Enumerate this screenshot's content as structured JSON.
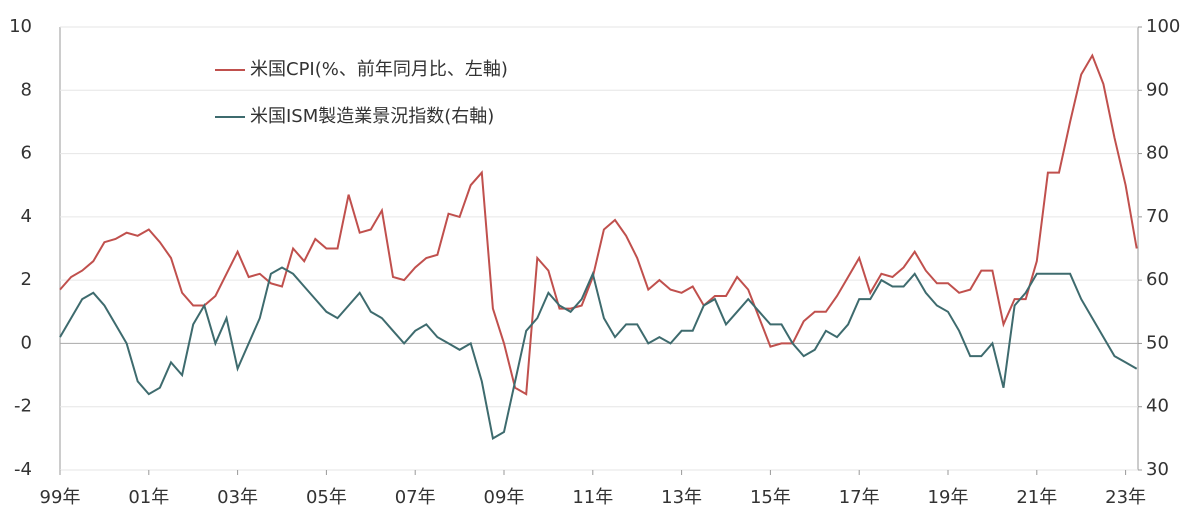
{
  "chart_data": {
    "type": "line",
    "categories": [
      "99年",
      null,
      null,
      null,
      null,
      null,
      null,
      null,
      "01年",
      null,
      null,
      null,
      null,
      null,
      null,
      null,
      "03年",
      null,
      null,
      null,
      null,
      null,
      null,
      null,
      "05年",
      null,
      null,
      null,
      null,
      null,
      null,
      null,
      "07年",
      null,
      null,
      null,
      null,
      null,
      null,
      null,
      "09年",
      null,
      null,
      null,
      null,
      null,
      null,
      null,
      "11年",
      null,
      null,
      null,
      null,
      null,
      null,
      null,
      "13年",
      null,
      null,
      null,
      null,
      null,
      null,
      null,
      "15年",
      null,
      null,
      null,
      null,
      null,
      null,
      null,
      "17年",
      null,
      null,
      null,
      null,
      null,
      null,
      null,
      "19年",
      null,
      null,
      null,
      null,
      null,
      null,
      null,
      "21年",
      null,
      null,
      null,
      null,
      null,
      null,
      null,
      "23年",
      null
    ],
    "series": [
      {
        "name": "米国CPI(%、前年同月比、左軸)",
        "color": "#c0504d",
        "values": [
          1.7,
          2.1,
          2.3,
          2.6,
          3.2,
          3.3,
          3.5,
          3.4,
          3.6,
          3.2,
          2.7,
          1.6,
          1.2,
          1.2,
          1.5,
          2.2,
          2.9,
          2.1,
          2.2,
          1.9,
          1.8,
          3.0,
          2.6,
          3.3,
          3.0,
          3.0,
          4.7,
          3.5,
          3.6,
          4.2,
          2.1,
          2.0,
          2.4,
          2.7,
          2.8,
          4.1,
          4.0,
          5.0,
          5.4,
          1.1,
          0.0,
          -1.4,
          -1.6,
          2.7,
          2.3,
          1.1,
          1.1,
          1.2,
          2.1,
          3.6,
          3.9,
          3.4,
          2.7,
          1.7,
          2.0,
          1.7,
          1.6,
          1.8,
          1.2,
          1.5,
          1.5,
          2.1,
          1.7,
          0.8,
          -0.1,
          0.0,
          0.0,
          0.7,
          1.0,
          1.0,
          1.5,
          2.1,
          2.7,
          1.6,
          2.2,
          2.1,
          2.4,
          2.9,
          2.3,
          1.9,
          1.9,
          1.6,
          1.7,
          2.3,
          2.3,
          0.6,
          1.4,
          1.4,
          2.6,
          5.4,
          5.4,
          7.0,
          8.5,
          9.1,
          8.2,
          6.5,
          5.0,
          3.0
        ]
      },
      {
        "name": "米国ISM製造業景況指数(右軸)",
        "color": "#3e6b6e",
        "axis": "y2",
        "values": [
          51,
          54,
          57,
          58,
          56,
          53,
          50,
          44,
          42,
          43,
          47,
          45,
          53,
          56,
          50,
          54,
          46,
          50,
          54,
          61,
          62,
          61,
          59,
          57,
          55,
          54,
          56,
          58,
          55,
          54,
          52,
          50,
          52,
          53,
          51,
          50,
          49,
          50,
          44,
          35,
          36,
          44,
          52,
          54,
          58,
          56,
          55,
          57,
          61,
          54,
          51,
          53,
          53,
          50,
          51,
          50,
          52,
          52,
          56,
          57,
          53,
          55,
          57,
          55,
          53,
          53,
          50,
          48,
          49,
          52,
          51,
          53,
          57,
          57,
          60,
          59,
          59,
          61,
          58,
          56,
          55,
          52,
          48,
          48,
          50,
          43,
          56,
          58,
          61,
          61,
          61,
          61,
          57,
          54,
          51,
          48,
          47,
          46
        ]
      }
    ],
    "ylim": [
      -4,
      10
    ],
    "yticks": [
      -4,
      -2,
      0,
      2,
      4,
      6,
      8,
      10
    ],
    "y2lim": [
      30,
      100
    ],
    "y2ticks": [
      30,
      40,
      50,
      60,
      70,
      80,
      90,
      100
    ],
    "grid": true
  }
}
